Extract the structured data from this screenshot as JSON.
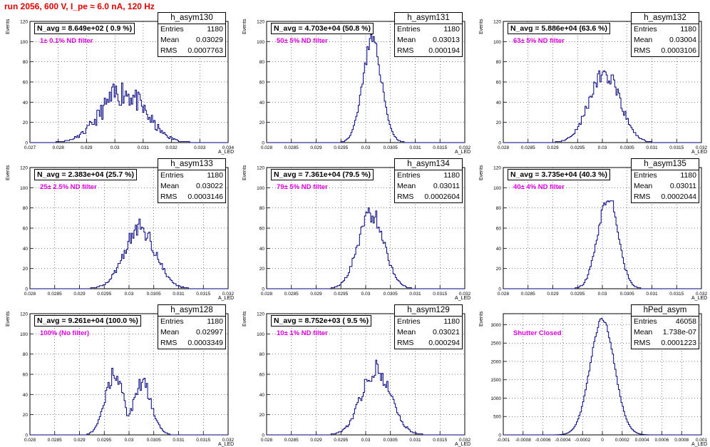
{
  "run_title": "run 2056,   600 V, I_pe ≈ 6.0 nA, 120 Hz",
  "colors": {
    "histogram": "#00007f",
    "title_text": "#e00000",
    "filter_text": "#e000e0"
  },
  "chart_data": [
    {
      "type": "bar",
      "name": "h_asym130",
      "navg": "N_avg = 8.649e+02 ( 0.9 %)",
      "filter": "1± 0.1% ND filter",
      "entries": "1180",
      "mean": "0.03029",
      "rms": "0.0007763",
      "xlabel": "A_LED",
      "ylabel": "Events",
      "xlim": [
        0.027,
        0.034
      ],
      "ylim": [
        0,
        120
      ],
      "xticks": [
        0.027,
        0.028,
        0.029,
        0.03,
        0.031,
        0.032,
        0.033,
        0.034
      ],
      "xtick_labels": [
        "0.027",
        "0.028",
        "0.029",
        "0.03",
        "0.031",
        "0.032",
        "0.033",
        "0.034"
      ],
      "yticks": [
        0,
        20,
        40,
        60,
        80,
        100,
        120
      ],
      "ytick_labels": [
        "0",
        "20",
        "40",
        "60",
        "80",
        "100",
        "120"
      ],
      "mean_value": 0.03029,
      "sigma": 0.0007763,
      "peak": 50,
      "noise": 0.28,
      "seed": 11
    },
    {
      "type": "bar",
      "name": "h_asym131",
      "navg": "N_avg = 4.703e+04 (50.8 %)",
      "filter": "50± 5% ND filter",
      "entries": "1180",
      "mean": "0.03013",
      "rms": "0.000194",
      "xlabel": "A_LED",
      "ylabel": "Events",
      "xlim": [
        0.028,
        0.032
      ],
      "ylim": [
        0,
        120
      ],
      "xticks": [
        0.028,
        0.0285,
        0.029,
        0.0295,
        0.03,
        0.0305,
        0.031,
        0.0315,
        0.032
      ],
      "xtick_labels": [
        "0.028",
        "0.0285",
        "0.029",
        "0.0295",
        "0.03",
        "0.0305",
        "0.031",
        "0.0315",
        "0.032"
      ],
      "yticks": [
        0,
        20,
        40,
        60,
        80,
        100,
        120
      ],
      "ytick_labels": [
        "0",
        "20",
        "40",
        "60",
        "80",
        "100",
        "120"
      ],
      "mean_value": 0.03013,
      "sigma": 0.000194,
      "peak": 100,
      "noise": 0.08,
      "seed": 23
    },
    {
      "type": "bar",
      "name": "h_asym132",
      "navg": "N_avg = 5.886e+04 (63.6 %)",
      "filter": "63± 5% ND filter",
      "entries": "1180",
      "mean": "0.03004",
      "rms": "0.0003106",
      "xlabel": "A_LED",
      "ylabel": "Events",
      "xlim": [
        0.028,
        0.032
      ],
      "ylim": [
        0,
        120
      ],
      "xticks": [
        0.028,
        0.0285,
        0.029,
        0.0295,
        0.03,
        0.0305,
        0.031,
        0.0315,
        0.032
      ],
      "xtick_labels": [
        "0.028",
        "0.0285",
        "0.029",
        "0.0295",
        "0.03",
        "0.0305",
        "0.031",
        "0.0315",
        "0.032"
      ],
      "yticks": [
        0,
        20,
        40,
        60,
        80,
        100,
        120
      ],
      "ytick_labels": [
        "0",
        "20",
        "40",
        "60",
        "80",
        "100",
        "120"
      ],
      "mean_value": 0.03004,
      "sigma": 0.0003106,
      "peak": 68,
      "noise": 0.15,
      "seed": 37
    },
    {
      "type": "bar",
      "name": "h_asym133",
      "navg": "N_avg = 2.383e+04 (25.7 %)",
      "filter": "25± 2.5% ND filter",
      "entries": "1180",
      "mean": "0.03022",
      "rms": "0.0003146",
      "xlabel": "A_LED",
      "ylabel": "Events",
      "xlim": [
        0.028,
        0.032
      ],
      "ylim": [
        0,
        120
      ],
      "xticks": [
        0.028,
        0.0285,
        0.029,
        0.0295,
        0.03,
        0.0305,
        0.031,
        0.0315,
        0.032
      ],
      "xtick_labels": [
        "0.028",
        "0.0285",
        "0.029",
        "0.0295",
        "0.03",
        "0.0305",
        "0.031",
        "0.0315",
        "0.032"
      ],
      "yticks": [
        0,
        20,
        40,
        60,
        80,
        100,
        120
      ],
      "ytick_labels": [
        "0",
        "20",
        "40",
        "60",
        "80",
        "100",
        "120"
      ],
      "mean_value": 0.03022,
      "sigma": 0.0003146,
      "peak": 60,
      "noise": 0.15,
      "seed": 41
    },
    {
      "type": "bar",
      "name": "h_asym134",
      "navg": "N_avg = 7.361e+04 (79.5 %)",
      "filter": "79± 5% ND filter",
      "entries": "1180",
      "mean": "0.03011",
      "rms": "0.0002604",
      "xlabel": "A_LED",
      "ylabel": "Events",
      "xlim": [
        0.028,
        0.032
      ],
      "ylim": [
        0,
        120
      ],
      "xticks": [
        0.028,
        0.0285,
        0.029,
        0.0295,
        0.03,
        0.0305,
        0.031,
        0.0315,
        0.032
      ],
      "xtick_labels": [
        "0.028",
        "0.0285",
        "0.029",
        "0.0295",
        "0.03",
        "0.0305",
        "0.031",
        "0.0315",
        "0.032"
      ],
      "yticks": [
        0,
        20,
        40,
        60,
        80,
        100,
        120
      ],
      "ytick_labels": [
        "0",
        "20",
        "40",
        "60",
        "80",
        "100",
        "120"
      ],
      "mean_value": 0.03011,
      "sigma": 0.0002604,
      "peak": 75,
      "noise": 0.12,
      "seed": 53
    },
    {
      "type": "bar",
      "name": "h_asym135",
      "navg": "N_avg = 3.735e+04 (40.3 %)",
      "filter": "40± 4% ND filter",
      "entries": "1180",
      "mean": "0.03011",
      "rms": "0.0002044",
      "xlabel": "A_LED",
      "ylabel": "Events",
      "xlim": [
        0.028,
        0.032
      ],
      "ylim": [
        0,
        120
      ],
      "xticks": [
        0.028,
        0.0285,
        0.029,
        0.0295,
        0.03,
        0.0305,
        0.031,
        0.0315,
        0.032
      ],
      "xtick_labels": [
        "0.028",
        "0.0285",
        "0.029",
        "0.0295",
        "0.03",
        "0.0305",
        "0.031",
        "0.0315",
        "0.032"
      ],
      "yticks": [
        0,
        20,
        40,
        60,
        80,
        100,
        120
      ],
      "ytick_labels": [
        "0",
        "20",
        "40",
        "60",
        "80",
        "100",
        "120"
      ],
      "mean_value": 0.03011,
      "sigma": 0.0002044,
      "peak": 92,
      "noise": 0.08,
      "seed": 67
    },
    {
      "type": "bar",
      "name": "h_asym128",
      "navg": "N_avg = 9.261e+04 (100.0 %)",
      "filter": "100% (No filter)",
      "entries": "1180",
      "mean": "0.02997",
      "rms": "0.0003349",
      "xlabel": "A_LED",
      "ylabel": "Events",
      "xlim": [
        0.028,
        0.032
      ],
      "ylim": [
        0,
        120
      ],
      "xticks": [
        0.028,
        0.0285,
        0.029,
        0.0295,
        0.03,
        0.0305,
        0.031,
        0.0315,
        0.032
      ],
      "xtick_labels": [
        "0.028",
        "0.0285",
        "0.029",
        "0.0295",
        "0.03",
        "0.0305",
        "0.031",
        "0.0315",
        "0.032"
      ],
      "yticks": [
        0,
        20,
        40,
        60,
        80,
        100,
        120
      ],
      "ytick_labels": [
        "0",
        "20",
        "40",
        "60",
        "80",
        "100",
        "120"
      ],
      "mean_value": 0.02997,
      "sigma": 0.0003349,
      "peak": 60,
      "noise": 0.15,
      "seed": 71,
      "bimodal": true
    },
    {
      "type": "bar",
      "name": "h_asym129",
      "navg": "N_avg = 8.752e+03 ( 9.5 %)",
      "filter": "10± 1% ND filter",
      "entries": "1180",
      "mean": "0.03021",
      "rms": "0.000294",
      "xlabel": "A_LED",
      "ylabel": "Events",
      "xlim": [
        0.028,
        0.032
      ],
      "ylim": [
        0,
        120
      ],
      "xticks": [
        0.028,
        0.0285,
        0.029,
        0.0295,
        0.03,
        0.0305,
        0.031,
        0.0315,
        0.032
      ],
      "xtick_labels": [
        "0.028",
        "0.0285",
        "0.029",
        "0.0295",
        "0.03",
        "0.0305",
        "0.031",
        "0.0315",
        "0.032"
      ],
      "yticks": [
        0,
        20,
        40,
        60,
        80,
        100,
        120
      ],
      "ytick_labels": [
        "0",
        "20",
        "40",
        "60",
        "80",
        "100",
        "120"
      ],
      "mean_value": 0.03021,
      "sigma": 0.000294,
      "peak": 65,
      "noise": 0.15,
      "seed": 83
    },
    {
      "type": "bar",
      "name": "hPed_asym",
      "navg": "",
      "filter": "Shutter Closed",
      "entries": "46058",
      "mean": "1.738e-07",
      "rms": "0.0001223",
      "xlabel": "A_LED",
      "ylabel": "Events",
      "xlim": [
        -0.001,
        0.001
      ],
      "ylim": [
        0,
        3300
      ],
      "xticks": [
        -0.001,
        -0.0008,
        -0.0006,
        -0.0004,
        -0.0002,
        0,
        0.0002,
        0.0004,
        0.0006,
        0.0008,
        0.001
      ],
      "xtick_labels": [
        "-0.001",
        "-0.0008",
        "-0.0006",
        "-0.0004",
        "-0.0002",
        "0",
        "0.0002",
        "0.0004",
        "0.0006",
        "0.0008",
        "0.001"
      ],
      "yticks": [
        0,
        500,
        1000,
        1500,
        2000,
        2500,
        3000
      ],
      "ytick_labels": [
        "0",
        "500",
        "1000",
        "1500",
        "2000",
        "2500",
        "3000"
      ],
      "mean_value": 2e-07,
      "sigma": 0.0001223,
      "peak": 3150,
      "noise": 0.02,
      "seed": 97
    }
  ]
}
